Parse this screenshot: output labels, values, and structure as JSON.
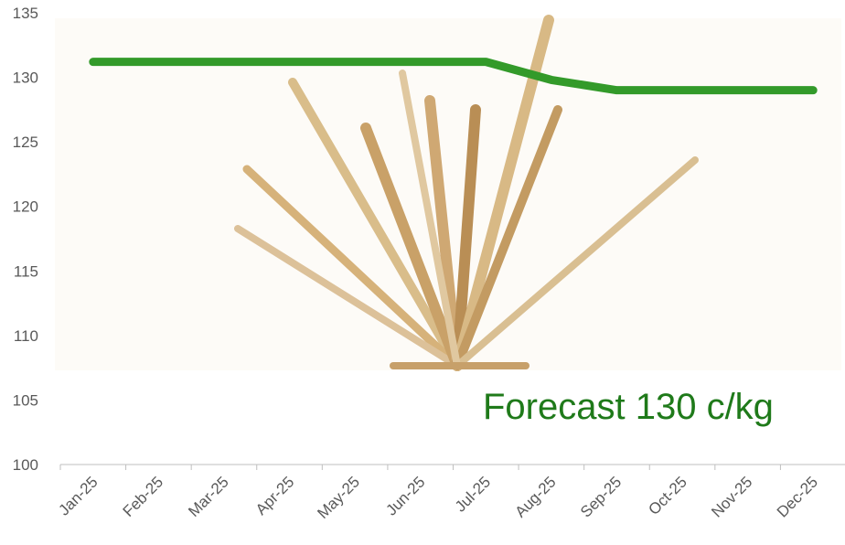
{
  "chart_data": {
    "type": "line",
    "categories": [
      "Jan-25",
      "Feb-25",
      "Mar-25",
      "Apr-25",
      "May-25",
      "Jun-25",
      "Jul-25",
      "Aug-25",
      "Sep-25",
      "Oct-25",
      "Nov-25",
      "Dec-25"
    ],
    "values": [
      131.2,
      131.2,
      131.2,
      131.2,
      131.2,
      131.2,
      131.2,
      129.8,
      129.0,
      129.0,
      129.0,
      129.0
    ],
    "color": "#339a2a",
    "ylim": [
      100,
      135
    ],
    "yticks": [
      100,
      105,
      110,
      115,
      120,
      125,
      130,
      135
    ],
    "annotation": "Forecast 130 c/kg",
    "annotation_color": "#1f7a1a"
  }
}
